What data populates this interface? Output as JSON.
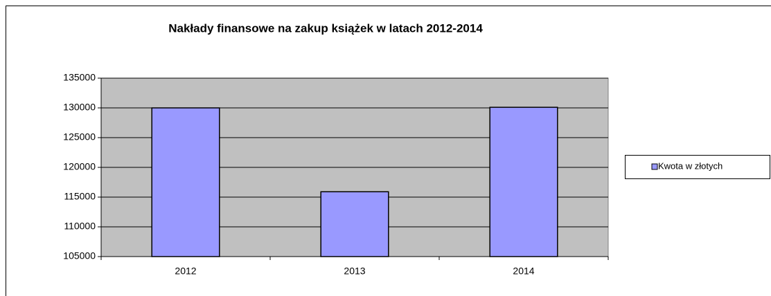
{
  "chart_data": {
    "type": "bar",
    "title": "Nakłady finansowe na zakup książek w latach 2012-2014",
    "categories": [
      "2012",
      "2013",
      "2014"
    ],
    "series": [
      {
        "name": "Kwota w złotych",
        "color": "#9999ff",
        "values": [
          130000,
          115900,
          130100
        ]
      }
    ],
    "ylim": [
      105000,
      135000
    ],
    "yticks": [
      105000,
      110000,
      115000,
      120000,
      125000,
      130000,
      135000
    ],
    "grid": true,
    "legend": "right"
  }
}
